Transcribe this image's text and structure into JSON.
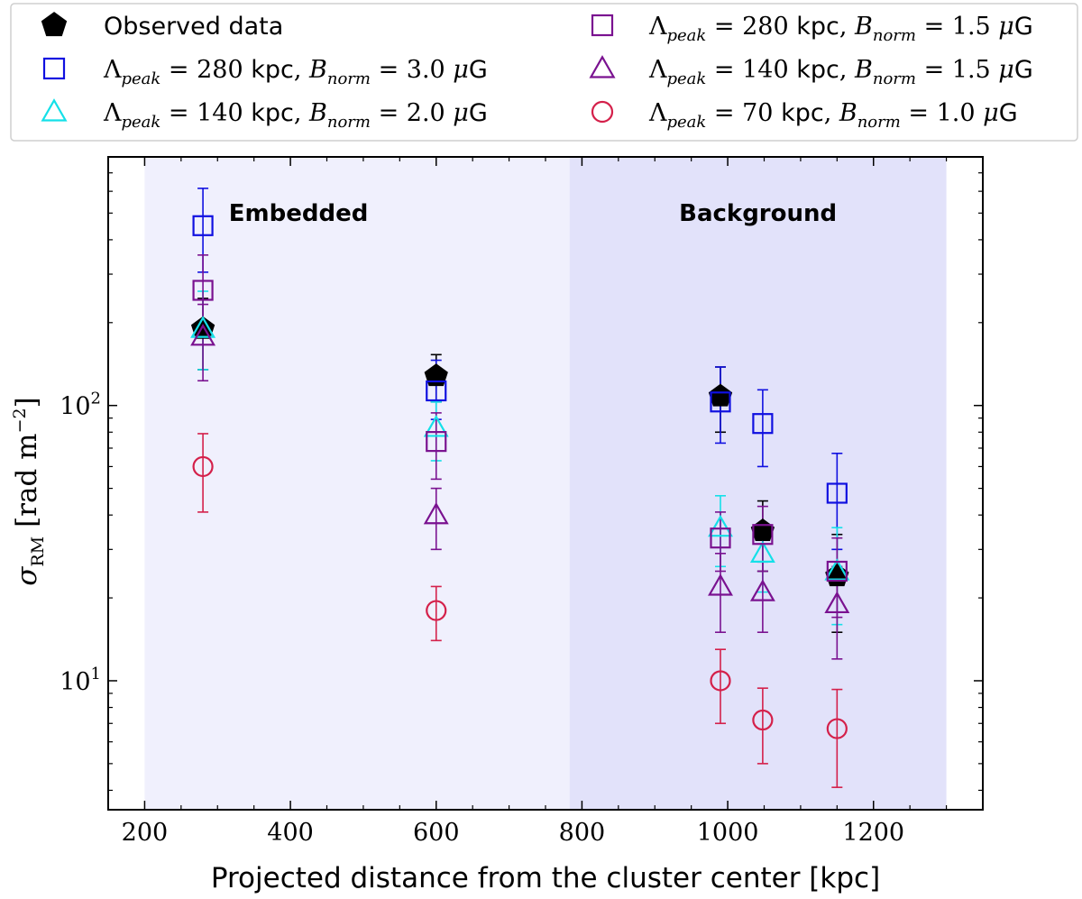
{
  "chart_data": {
    "type": "scatter",
    "title": "",
    "xlabel": "Projected distance from the cluster center [kpc]",
    "ylabel": "σ_RM [rad m^-2]",
    "ylabel_parts": {
      "sigma": "σ",
      "sub": "RM",
      "rest": " [rad m",
      "exp": "−2",
      "close": "]"
    },
    "xlim": [
      150,
      1350
    ],
    "ylim": [
      3.4,
      800
    ],
    "yscale": "log",
    "x_ticks": [
      200,
      400,
      600,
      800,
      1000,
      1200
    ],
    "x_tick_labels": [
      "200",
      "400",
      "600",
      "800",
      "1000",
      "1200"
    ],
    "y_ticks": [
      {
        "value": 10,
        "base": "10",
        "exp": "1"
      },
      {
        "value": 100,
        "base": "10",
        "exp": "2"
      }
    ],
    "regions": [
      {
        "label": "Embedded",
        "x_from": 200,
        "x_to": 783,
        "color": "#f0f0fd"
      },
      {
        "label": "Background",
        "x_from": 783,
        "x_to": 1300,
        "color": "#e2e2fa"
      }
    ],
    "legend_position": "top",
    "series": [
      {
        "name": "Observed data",
        "marker": "pentagon",
        "filled": true,
        "color": "#000000",
        "points": [
          {
            "x": 280,
            "y": 190,
            "err": [
              55,
              55
            ]
          },
          {
            "x": 600,
            "y": 128,
            "err": [
              25,
              25
            ]
          },
          {
            "x": 990,
            "y": 108,
            "err": [
              28,
              30
            ]
          },
          {
            "x": 1048,
            "y": 35,
            "err": [
              10,
              10
            ]
          },
          {
            "x": 1150,
            "y": 24,
            "err": [
              9,
              10
            ]
          }
        ]
      },
      {
        "name": "Λ_peak = 280 kpc, B_norm = 3.0 μG",
        "label_parts": {
          "lambda": "280",
          "b": "3.0"
        },
        "marker": "square",
        "filled": false,
        "color": "#1010e0",
        "points": [
          {
            "x": 280,
            "y": 450,
            "err": [
              145,
              165
            ]
          },
          {
            "x": 600,
            "y": 113,
            "err": [
              24,
              33
            ]
          },
          {
            "x": 990,
            "y": 103,
            "err": [
              30,
              35
            ]
          },
          {
            "x": 1048,
            "y": 86,
            "err": [
              26,
              28
            ]
          },
          {
            "x": 1150,
            "y": 48,
            "err": [
              18,
              19
            ]
          }
        ]
      },
      {
        "name": "Λ_peak = 140 kpc, B_norm = 2.0 μG",
        "label_parts": {
          "lambda": "140",
          "b": "2.0"
        },
        "marker": "triangle",
        "filled": false,
        "color": "#14e0e8",
        "points": [
          {
            "x": 280,
            "y": 190,
            "err": [
              55,
              70
            ]
          },
          {
            "x": 600,
            "y": 83,
            "err": [
              20,
              20
            ]
          },
          {
            "x": 990,
            "y": 36,
            "err": [
              10,
              11
            ]
          },
          {
            "x": 1048,
            "y": 29,
            "err": [
              8,
              8
            ]
          },
          {
            "x": 1150,
            "y": 25,
            "err": [
              9,
              11
            ]
          }
        ]
      },
      {
        "name": "Λ_peak = 280 kpc, B_norm = 1.5 μG",
        "label_parts": {
          "lambda": "280",
          "b": "1.5"
        },
        "marker": "square",
        "filled": false,
        "color": "#7a1290",
        "points": [
          {
            "x": 280,
            "y": 262,
            "err": [
              75,
              90
            ]
          },
          {
            "x": 600,
            "y": 74,
            "err": [
              20,
              20
            ]
          },
          {
            "x": 990,
            "y": 33,
            "err": [
              8,
              8
            ]
          },
          {
            "x": 1048,
            "y": 34,
            "err": [
              9,
              9
            ]
          },
          {
            "x": 1150,
            "y": 25,
            "err": [
              8,
              8
            ]
          }
        ]
      },
      {
        "name": "Λ_peak = 140 kpc, B_norm = 1.5 μG",
        "label_parts": {
          "lambda": "140",
          "b": "1.5"
        },
        "marker": "triangle",
        "filled": false,
        "color": "#7a1290",
        "points": [
          {
            "x": 280,
            "y": 178,
            "err": [
              55,
              55
            ]
          },
          {
            "x": 600,
            "y": 40,
            "err": [
              10,
              10
            ]
          },
          {
            "x": 990,
            "y": 22,
            "err": [
              7,
              7
            ]
          },
          {
            "x": 1048,
            "y": 21,
            "err": [
              6,
              6
            ]
          },
          {
            "x": 1150,
            "y": 19,
            "err": [
              7,
              7
            ]
          }
        ]
      },
      {
        "name": "Λ_peak = 70 kpc, B_norm = 1.0 μG",
        "label_parts": {
          "lambda": "70",
          "b": "1.0"
        },
        "marker": "circle",
        "filled": false,
        "color": "#d4204a",
        "points": [
          {
            "x": 280,
            "y": 60,
            "err": [
              19,
              19
            ]
          },
          {
            "x": 600,
            "y": 18,
            "err": [
              4,
              4
            ]
          },
          {
            "x": 990,
            "y": 10,
            "err": [
              3,
              3
            ]
          },
          {
            "x": 1048,
            "y": 7.2,
            "err": [
              2.2,
              2.2
            ]
          },
          {
            "x": 1150,
            "y": 6.7,
            "err": [
              2.6,
              2.6
            ]
          }
        ]
      }
    ]
  }
}
